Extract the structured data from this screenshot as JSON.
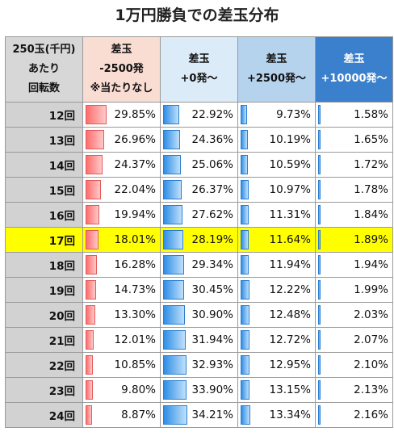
{
  "chart_data": {
    "type": "table",
    "title": "1万円勝負での差玉分布",
    "row_header_lines": [
      "250玉(千円)",
      "あたり",
      "回転数"
    ],
    "column_headers": [
      {
        "lines": [
          "差玉",
          "-2500発",
          "※当たりなし"
        ]
      },
      {
        "lines": [
          "差玉",
          "+0発～"
        ]
      },
      {
        "lines": [
          "差玉",
          "+2500発～"
        ]
      },
      {
        "lines": [
          "差玉",
          "+10000発～"
        ]
      }
    ],
    "bar_colors": [
      "#ff6d6d",
      "#2f8ee6",
      "#2f8ee6",
      "#2f8ee6"
    ],
    "highlight_color": "#ffff00",
    "highlight_row": "17回",
    "rows": [
      {
        "label": "12回",
        "values": [
          "29.85%",
          "22.92%",
          "9.73%",
          "1.58%"
        ]
      },
      {
        "label": "13回",
        "values": [
          "26.96%",
          "24.36%",
          "10.19%",
          "1.65%"
        ]
      },
      {
        "label": "14回",
        "values": [
          "24.37%",
          "25.06%",
          "10.59%",
          "1.72%"
        ]
      },
      {
        "label": "15回",
        "values": [
          "22.04%",
          "26.37%",
          "10.97%",
          "1.78%"
        ]
      },
      {
        "label": "16回",
        "values": [
          "19.94%",
          "27.62%",
          "11.31%",
          "1.84%"
        ]
      },
      {
        "label": "17回",
        "values": [
          "18.01%",
          "28.19%",
          "11.64%",
          "1.89%"
        ]
      },
      {
        "label": "18回",
        "values": [
          "16.28%",
          "29.34%",
          "11.94%",
          "1.94%"
        ]
      },
      {
        "label": "19回",
        "values": [
          "14.73%",
          "30.45%",
          "12.22%",
          "1.99%"
        ]
      },
      {
        "label": "20回",
        "values": [
          "13.30%",
          "30.90%",
          "12.48%",
          "2.03%"
        ]
      },
      {
        "label": "21回",
        "values": [
          "12.01%",
          "31.94%",
          "12.72%",
          "2.07%"
        ]
      },
      {
        "label": "22回",
        "values": [
          "10.85%",
          "32.93%",
          "12.95%",
          "2.10%"
        ]
      },
      {
        "label": "23回",
        "values": [
          "9.80%",
          "33.90%",
          "13.15%",
          "2.13%"
        ]
      },
      {
        "label": "24回",
        "values": [
          "8.87%",
          "34.21%",
          "13.34%",
          "2.16%"
        ]
      }
    ]
  }
}
